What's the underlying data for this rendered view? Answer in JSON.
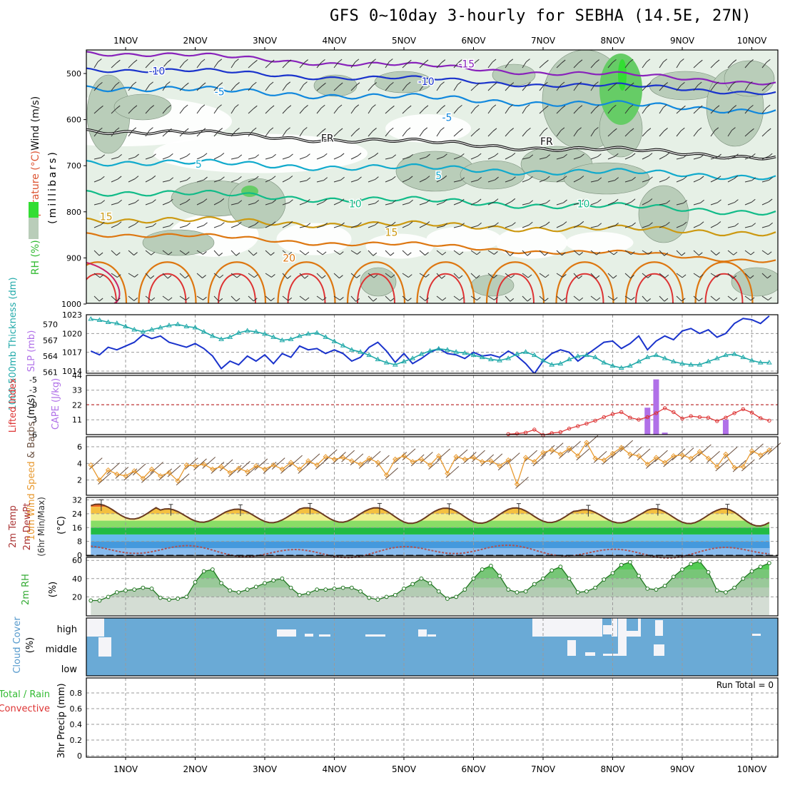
{
  "title": "GFS 0~10day 3-hourly for SEBHA (14.5E, 27N)",
  "colors": {
    "rh_light": "#e6f0e6",
    "rh_mid": "#b9cdb9",
    "rh_green": "#66cc66",
    "rh_bright": "#33dd33",
    "freezing": "#111111",
    "thickness": "#22aaaa",
    "slp": "#1a33cc",
    "lifted": "#dd3333",
    "cape": "#b070e8",
    "wind": "#e89a30",
    "cloud": "#6aaad6",
    "rh2m": "#55bb55"
  },
  "chart_data": [
    {
      "panel": "upper-air",
      "type": "contour",
      "ylabel_parts": [
        "RH (%)",
        "Temperature (°C)",
        "Wind (m/s)",
        "(millibars)"
      ],
      "yticks": [
        500,
        600,
        700,
        800,
        900,
        1000
      ],
      "ylim": [
        450,
        1000
      ],
      "x_ticks_top": [
        "1NOV",
        "2NOV",
        "3NOV",
        "4NOV",
        "5NOV",
        "6NOV",
        "7NOV",
        "8NOV",
        "9NOV",
        "10NOV"
      ],
      "contour_labels": [
        {
          "text": "-15",
          "day": 5.9,
          "p": 487,
          "color": "#8822bb"
        },
        {
          "text": "-10",
          "day": 1.45,
          "p": 502,
          "color": "#1a33cc"
        },
        {
          "text": "-10",
          "day": 5.32,
          "p": 525,
          "color": "#1a33cc"
        },
        {
          "text": "-5",
          "day": 2.35,
          "p": 547,
          "color": "#1188dd"
        },
        {
          "text": "-5",
          "day": 5.62,
          "p": 603,
          "color": "#1188dd"
        },
        {
          "text": "FR",
          "day": 3.9,
          "p": 648,
          "color": "#111111"
        },
        {
          "text": "FR",
          "day": 7.05,
          "p": 655,
          "color": "#111111"
        },
        {
          "text": "5",
          "day": 2.05,
          "p": 704,
          "color": "#11aacc"
        },
        {
          "text": "5",
          "day": 5.5,
          "p": 729,
          "color": "#11aacc"
        },
        {
          "text": "10",
          "day": 4.3,
          "p": 790,
          "color": "#11bb88"
        },
        {
          "text": "10",
          "day": 7.58,
          "p": 790,
          "color": "#11bb88"
        },
        {
          "text": "15",
          "day": 0.72,
          "p": 818,
          "color": "#cc9911"
        },
        {
          "text": "15",
          "day": 4.82,
          "p": 852,
          "color": "#cc9911"
        },
        {
          "text": "20",
          "day": 3.35,
          "p": 908,
          "color": "#dd7711"
        }
      ]
    },
    {
      "panel": "thickness-slp",
      "type": "line",
      "ylabel": "1000-500mb Thickness (dm)",
      "y2label": "SLP (mb)",
      "thickness_ticks": [
        561,
        564,
        567,
        570
      ],
      "slp_ticks": [
        1014,
        1017,
        1020,
        1023
      ],
      "x": [
        0.5,
        0.625,
        0.75,
        0.875,
        1.0,
        1.125,
        1.25,
        1.375,
        1.5,
        1.625,
        1.75,
        1.875,
        2.0,
        2.125,
        2.25,
        2.375,
        2.5,
        2.625,
        2.75,
        2.875,
        3.0,
        3.125,
        3.25,
        3.375,
        3.5,
        3.625,
        3.75,
        3.875,
        4.0,
        4.125,
        4.25,
        4.375,
        4.5,
        4.625,
        4.75,
        4.875,
        5.0,
        5.125,
        5.25,
        5.375,
        5.5,
        5.625,
        5.75,
        5.875,
        6.0,
        6.125,
        6.25,
        6.375,
        6.5,
        6.625,
        6.75,
        6.875,
        7.0,
        7.125,
        7.25,
        7.375,
        7.5,
        7.625,
        7.75,
        7.875,
        8.0,
        8.125,
        8.25,
        8.375,
        8.5,
        8.625,
        8.75,
        8.875,
        9.0,
        9.125,
        9.25,
        9.375,
        9.5,
        9.625,
        9.75,
        9.875,
        10.0,
        10.125,
        10.25
      ],
      "slp": [
        1017.2,
        1016.6,
        1017.8,
        1017.4,
        1018.0,
        1018.6,
        1019.8,
        1019.2,
        1019.6,
        1018.6,
        1018.2,
        1017.8,
        1018.4,
        1017.6,
        1016.4,
        1014.4,
        1015.6,
        1015.0,
        1016.4,
        1015.6,
        1016.6,
        1015.2,
        1016.8,
        1016.2,
        1018.0,
        1017.4,
        1017.6,
        1016.8,
        1017.4,
        1016.8,
        1015.6,
        1016.2,
        1017.8,
        1018.6,
        1017.2,
        1015.4,
        1016.8,
        1015.2,
        1016.0,
        1017.0,
        1017.6,
        1016.8,
        1016.6,
        1016.0,
        1017.0,
        1016.4,
        1016.6,
        1016.2,
        1017.2,
        1016.4,
        1015.2,
        1013.6,
        1015.6,
        1016.8,
        1017.4,
        1017.0,
        1015.6,
        1016.6,
        1017.6,
        1018.6,
        1018.8,
        1017.6,
        1018.4,
        1019.6,
        1017.4,
        1018.8,
        1019.6,
        1019.0,
        1020.4,
        1020.8,
        1020.0,
        1020.6,
        1019.4,
        1020.0,
        1021.6,
        1022.4,
        1022.2,
        1021.6,
        1022.8
      ],
      "thickness": [
        571.0,
        570.8,
        570.4,
        570.2,
        569.6,
        569.0,
        568.6,
        569.0,
        569.4,
        569.8,
        570.0,
        569.6,
        569.4,
        568.6,
        567.8,
        567.2,
        567.6,
        568.4,
        568.8,
        568.6,
        568.2,
        567.6,
        567.0,
        567.2,
        567.8,
        568.2,
        568.4,
        567.6,
        566.8,
        566.0,
        565.2,
        564.8,
        564.2,
        563.4,
        562.8,
        562.4,
        563.0,
        563.6,
        564.4,
        565.0,
        565.4,
        565.2,
        564.8,
        564.6,
        564.2,
        563.8,
        563.4,
        563.2,
        563.6,
        564.4,
        564.8,
        564.2,
        563.2,
        562.4,
        562.6,
        563.4,
        564.0,
        564.2,
        563.8,
        562.8,
        562.2,
        561.8,
        562.2,
        563.0,
        563.8,
        564.2,
        563.6,
        563.0,
        562.6,
        562.4,
        562.4,
        563.0,
        563.6,
        564.2,
        564.4,
        563.8,
        563.2,
        562.8,
        562.8
      ]
    },
    {
      "panel": "lifted-cape",
      "type": "bar+line",
      "ylabel": "Lifted Index",
      "y2label": "CAPE (J/kg)",
      "li_ticks": [
        "-5",
        "-3",
        "0",
        "3",
        "6"
      ],
      "cape_ticks": [
        11,
        22,
        33,
        44
      ],
      "lifted_x": [
        6.5,
        6.625,
        6.75,
        6.875,
        7.0,
        7.125,
        7.25,
        7.375,
        7.5,
        7.625,
        7.75,
        7.875,
        8.0,
        8.125,
        8.25,
        8.375,
        8.5,
        8.625,
        8.75,
        8.875,
        9.0,
        9.125,
        9.25,
        9.375,
        9.5,
        9.625,
        9.75,
        9.875,
        10.0,
        10.125,
        10.25
      ],
      "lifted_index": [
        5.9,
        5.8,
        5.6,
        5.0,
        6.1,
        5.7,
        5.5,
        4.8,
        4.3,
        3.8,
        3.2,
        2.5,
        1.9,
        1.5,
        2.6,
        3.0,
        2.5,
        1.7,
        0.7,
        1.5,
        2.8,
        2.3,
        2.5,
        2.6,
        3.3,
        2.6,
        1.7,
        0.9,
        1.6,
        2.7,
        3.2
      ],
      "cape_x": [
        8.5,
        8.625,
        8.75,
        9.625
      ],
      "cape": [
        20,
        41,
        1.5,
        11
      ]
    },
    {
      "panel": "wind10m",
      "type": "line",
      "ylabel": "10m Wind Speed & Barbs (m/s)",
      "yticks": [
        2,
        4,
        6
      ],
      "x": [
        0.5,
        0.625,
        0.75,
        0.875,
        1.0,
        1.125,
        1.25,
        1.375,
        1.5,
        1.625,
        1.75,
        1.875,
        2.0,
        2.125,
        2.25,
        2.375,
        2.5,
        2.625,
        2.75,
        2.875,
        3.0,
        3.125,
        3.25,
        3.375,
        3.5,
        3.625,
        3.75,
        3.875,
        4.0,
        4.125,
        4.25,
        4.375,
        4.5,
        4.625,
        4.75,
        4.875,
        5.0,
        5.125,
        5.25,
        5.375,
        5.5,
        5.625,
        5.75,
        5.875,
        6.0,
        6.125,
        6.25,
        6.375,
        6.5,
        6.625,
        6.75,
        6.875,
        7.0,
        7.125,
        7.25,
        7.375,
        7.5,
        7.625,
        7.75,
        7.875,
        8.0,
        8.125,
        8.25,
        8.375,
        8.5,
        8.625,
        8.75,
        8.875,
        9.0,
        9.125,
        9.25,
        9.375,
        9.5,
        9.625,
        9.75,
        9.875,
        10.0,
        10.125,
        10.25
      ],
      "speed": [
        3.8,
        2.0,
        3.2,
        2.7,
        2.5,
        3.1,
        2.2,
        3.3,
        2.5,
        2.9,
        1.9,
        3.8,
        3.7,
        3.9,
        3.3,
        3.6,
        2.9,
        3.4,
        3.0,
        3.7,
        3.3,
        3.8,
        3.3,
        4.1,
        3.3,
        4.3,
        3.8,
        4.8,
        4.5,
        4.7,
        4.3,
        3.9,
        4.6,
        4.1,
        2.6,
        4.5,
        4.9,
        4.2,
        4.5,
        3.8,
        4.9,
        2.8,
        4.8,
        4.5,
        4.7,
        4.2,
        4.3,
        3.7,
        4.4,
        1.5,
        4.7,
        4.2,
        5.3,
        5.6,
        5.1,
        5.8,
        4.9,
        6.5,
        4.6,
        4.4,
        5.2,
        5.9,
        5.1,
        4.9,
        3.9,
        4.7,
        4.1,
        4.9,
        5.0,
        4.6,
        5.4,
        4.6,
        3.6,
        5.1,
        3.5,
        3.6,
        5.5,
        5.0,
        5.6
      ]
    },
    {
      "panel": "temp2m",
      "type": "area",
      "ylabel": "2m Temp 2m DewPt (6hr Min/Max) (°C)",
      "yticks": [
        0,
        8,
        16,
        24,
        32
      ],
      "day_highs": [
        29.6,
        26.9,
        26.7,
        27.5,
        27.5,
        27.3,
        27.4,
        26.4,
        26.9,
        27.0
      ],
      "night_lows": [
        20.9,
        19.1,
        18.8,
        19.1,
        18.4,
        18.5,
        18.9,
        18.7,
        18.3,
        16.9
      ],
      "dewpoint_range": [
        -1.5,
        5.8
      ]
    },
    {
      "panel": "rh2m",
      "type": "area",
      "ylabel": "2m RH (%)",
      "yticks": [
        20,
        40,
        60
      ],
      "x": [
        0.5,
        0.625,
        0.75,
        0.875,
        1.0,
        1.125,
        1.25,
        1.375,
        1.5,
        1.625,
        1.75,
        1.875,
        2.0,
        2.125,
        2.25,
        2.375,
        2.5,
        2.625,
        2.75,
        2.875,
        3.0,
        3.125,
        3.25,
        3.375,
        3.5,
        3.625,
        3.75,
        3.875,
        4.0,
        4.125,
        4.25,
        4.375,
        4.5,
        4.625,
        4.75,
        4.875,
        5.0,
        5.125,
        5.25,
        5.375,
        5.5,
        5.625,
        5.75,
        5.875,
        6.0,
        6.125,
        6.25,
        6.375,
        6.5,
        6.625,
        6.75,
        6.875,
        7.0,
        7.125,
        7.25,
        7.375,
        7.5,
        7.625,
        7.75,
        7.875,
        8.0,
        8.125,
        8.25,
        8.375,
        8.5,
        8.625,
        8.75,
        8.875,
        9.0,
        9.125,
        9.25,
        9.375,
        9.5,
        9.625,
        9.75,
        9.875,
        10.0,
        10.125,
        10.25
      ],
      "rh": [
        16,
        16,
        20,
        25,
        27,
        28,
        30,
        29,
        19,
        17,
        18,
        20,
        36,
        48,
        50,
        35,
        27,
        25,
        28,
        31,
        35,
        38,
        40,
        30,
        22,
        24,
        28,
        28,
        29,
        30,
        30,
        26,
        19,
        17,
        20,
        22,
        29,
        34,
        40,
        35,
        26,
        18,
        20,
        28,
        40,
        50,
        54,
        43,
        28,
        25,
        26,
        34,
        40,
        49,
        53,
        40,
        25,
        26,
        30,
        39,
        46,
        55,
        58,
        43,
        29,
        28,
        32,
        42,
        50,
        56,
        59,
        47,
        27,
        25,
        30,
        40,
        48,
        53,
        57
      ]
    },
    {
      "panel": "cloud",
      "type": "bar",
      "ylabel": "Cloud Cover (%)",
      "levels": [
        "high",
        "middle",
        "low"
      ]
    },
    {
      "panel": "precip",
      "type": "bar",
      "ylabel": "3hr Precip (mm)",
      "legend": "Total / Rain",
      "legend2": "Convective",
      "yticks": [
        "0",
        "0.2",
        "0.4",
        "0.6",
        "0.8"
      ],
      "run_total": "Run Total = 0",
      "x_ticks_bottom": [
        "1NOV",
        "2NOV",
        "3NOV",
        "4NOV",
        "5NOV",
        "6NOV",
        "7NOV",
        "8NOV",
        "9NOV",
        "10NOV"
      ]
    }
  ]
}
